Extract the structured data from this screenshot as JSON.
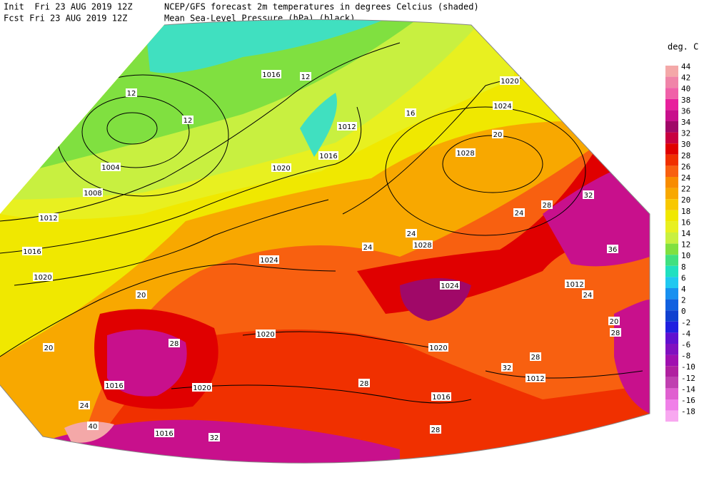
{
  "header": {
    "init": "Init  Fri 23 AUG 2019 12Z",
    "fcst": "Fcst Fri 23 AUG 2019 12Z",
    "title": "NCEP/GFS forecast 2m temperatures in degrees Celcius (shaded)",
    "subtitle": "Mean Sea-Level Pressure (hPa) (black)."
  },
  "legend": {
    "title": "deg. C",
    "entries": [
      {
        "value": 44,
        "color": "#f4a8a8"
      },
      {
        "value": 42,
        "color": "#f084a8"
      },
      {
        "value": 40,
        "color": "#f060a8"
      },
      {
        "value": 38,
        "color": "#e8209c"
      },
      {
        "value": 36,
        "color": "#c8108c"
      },
      {
        "value": 34,
        "color": "#a00868"
      },
      {
        "value": 32,
        "color": "#c80040"
      },
      {
        "value": 30,
        "color": "#e00000"
      },
      {
        "value": 28,
        "color": "#f03000"
      },
      {
        "value": 26,
        "color": "#f86010"
      },
      {
        "value": 24,
        "color": "#f88c00"
      },
      {
        "value": 22,
        "color": "#f8a800"
      },
      {
        "value": 20,
        "color": "#f8c800"
      },
      {
        "value": 18,
        "color": "#f0e800"
      },
      {
        "value": 16,
        "color": "#e8f020"
      },
      {
        "value": 14,
        "color": "#c8f040"
      },
      {
        "value": 12,
        "color": "#80e040"
      },
      {
        "value": 10,
        "color": "#40e080"
      },
      {
        "value": 8,
        "color": "#20e0c0"
      },
      {
        "value": 6,
        "color": "#20c8f0"
      },
      {
        "value": 4,
        "color": "#1890f0"
      },
      {
        "value": 2,
        "color": "#1060e0"
      },
      {
        "value": 0,
        "color": "#1040d0"
      },
      {
        "value": -2,
        "color": "#2020e0"
      },
      {
        "value": -4,
        "color": "#6010d0"
      },
      {
        "value": -6,
        "color": "#8010c0"
      },
      {
        "value": -8,
        "color": "#a010b0"
      },
      {
        "value": -10,
        "color": "#b020a0"
      },
      {
        "value": -12,
        "color": "#c040b0"
      },
      {
        "value": -14,
        "color": "#e060d0"
      },
      {
        "value": -16,
        "color": "#f080e8"
      },
      {
        "value": -18,
        "color": "#f8a8f0"
      }
    ]
  },
  "map": {
    "isobar_labels": [
      1016,
      1012,
      1016,
      1020,
      1004,
      1008,
      1012,
      1016,
      1020,
      1020,
      1024,
      1028,
      1028,
      1024,
      1024,
      1020,
      1020,
      1012,
      1012,
      1016,
      1020,
      1016,
      1016
    ],
    "temperature_labels": [
      12,
      12,
      12,
      16,
      20,
      24,
      24,
      24,
      28,
      32,
      36,
      20,
      20,
      28,
      28,
      32,
      24,
      40,
      32,
      28,
      28,
      20,
      24,
      28
    ]
  }
}
